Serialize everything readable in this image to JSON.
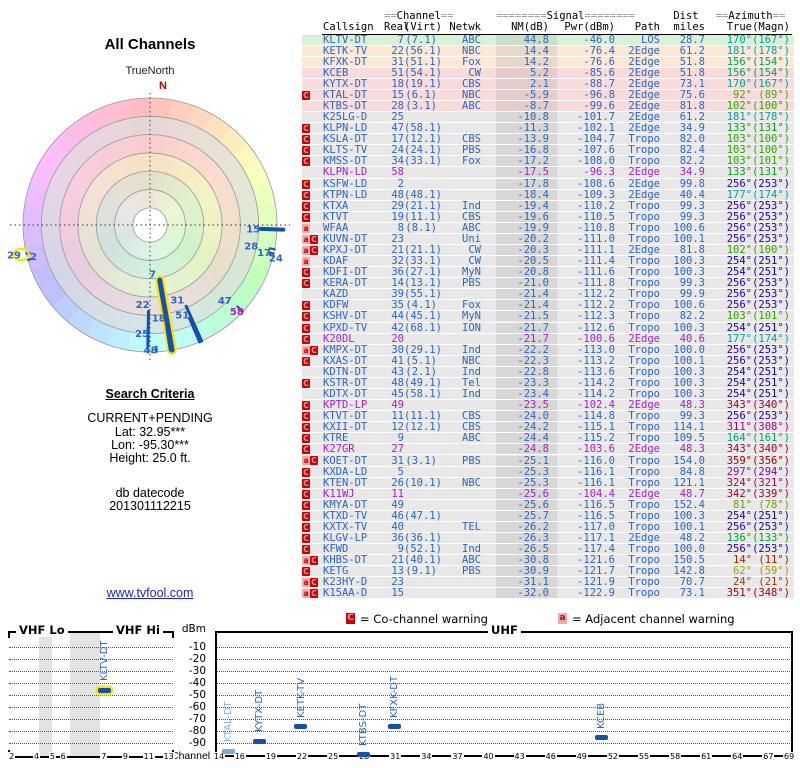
{
  "radar": {
    "title": "All Channels",
    "north_label": "TrueNorth",
    "north_letter": "N",
    "highlight_color": "#ffe400",
    "marker_color": "#1450b4",
    "markers": [
      {
        "ch": "15",
        "az": 92,
        "r0": 0.87,
        "r1": 1.05,
        "w": 4,
        "lr": 0.86
      },
      {
        "ch": "28",
        "az": 101,
        "r0": 0.96,
        "r1": 1.0,
        "w": 2,
        "lr": 0.86
      },
      {
        "ch": "17",
        "az": 103,
        "r0": 0.96,
        "r1": 1.0,
        "w": 2,
        "lr": 0.97
      },
      {
        "ch": "24",
        "az": 104,
        "r0": 0.97,
        "r1": 1.0,
        "w": 2,
        "lr": 1.07
      },
      {
        "ch": "47",
        "az": 133,
        "r0": 0.94,
        "r1": 1.0,
        "w": 2,
        "lr": 0.87
      },
      {
        "ch": "58",
        "az": 133,
        "r0": 0.97,
        "r1": 1.0,
        "w": 2,
        "lr": 1.0,
        "color": "#a81fd0"
      },
      {
        "ch": "31",
        "az": 156,
        "r0": 0.7,
        "r1": 1.0,
        "w": 3,
        "lr": 0.645
      },
      {
        "ch": "51",
        "az": 157,
        "r0": 0.8,
        "r1": 1.0,
        "w": 3,
        "lr": 0.77
      },
      {
        "ch": "7",
        "az": 170,
        "r0": 0.44,
        "r1": 1.0,
        "w": 5,
        "lr": 0.39,
        "highlight": true
      },
      {
        "ch": "18",
        "az": 171,
        "r0": 0.82,
        "r1": 1.0,
        "w": 2,
        "lr": 0.74
      },
      {
        "ch": "22",
        "az": 181,
        "r0": 0.68,
        "r1": 0.97,
        "w": 3,
        "lr": 0.625
      },
      {
        "ch": "25",
        "az": 181,
        "r0": 0.91,
        "r1": 1.0,
        "w": 2,
        "lr": 0.855
      },
      {
        "ch": "48",
        "az": 177,
        "r0": 0.96,
        "r1": 1.0,
        "w": 2,
        "lr": 0.985
      },
      {
        "ch": "2",
        "az": 254,
        "r0": 0.97,
        "r1": 1.0,
        "w": 2,
        "lr": 0.905
      },
      {
        "ch": "29",
        "az": 257,
        "r0": 0.97,
        "r1": 1.0,
        "w": 2,
        "lr": 1.05,
        "ring": true
      }
    ]
  },
  "criteria": {
    "title": "Search Criteria",
    "mode": "CURRENT+PENDING",
    "lat": "Lat: 32.95***",
    "lon": "Lon: -95.30***",
    "height": "Height: 25.0 ft.",
    "db_label": "db datecode",
    "db_datecode": "201301112215"
  },
  "site_link": "www.tvfool.com",
  "legend": {
    "c_symbol": "C",
    "c_text": "= Co-channel warning",
    "a_symbol": "a",
    "a_text": "= Adjacent channel warning"
  },
  "table": {
    "group_headers": {
      "channel_pre": "==",
      "channel": "Channel",
      "channel_post": "==",
      "signal_pre": "========",
      "signal": "Signal",
      "signal_post": "========",
      "dist": "Dist",
      "azimuth_pre": "==",
      "azimuth": "Azimuth",
      "azimuth_post": "=="
    },
    "columns": [
      "Callsign",
      "Real",
      "(Virt)",
      "Netwk",
      "NM(dB)",
      "Pwr(dBm)",
      "Path",
      "miles",
      "True",
      "(Magn)"
    ],
    "text_color": "#2e64c4",
    "pending_color": "#a81fd0",
    "rows": [
      [
        "",
        "KLTV-DT",
        "7",
        "(7.1)",
        "ABC",
        "44.8",
        "-46.0",
        "LOS",
        "28.7",
        170,
        167,
        "g",
        0
      ],
      [
        "",
        "KETK-TV",
        "22",
        "(56.1)",
        "NBC",
        "14.4",
        "-76.4",
        "2Edge",
        "61.2",
        181,
        178,
        "y",
        0
      ],
      [
        "",
        "KFXK-DT",
        "31",
        "(51.1)",
        "Fox",
        "14.2",
        "-76.6",
        "2Edge",
        "51.8",
        156,
        154,
        "y",
        0
      ],
      [
        "",
        "KCEB",
        "51",
        "(54.1)",
        "CW",
        "5.2",
        "-85.6",
        "2Edge",
        "51.8",
        156,
        154,
        "p",
        0
      ],
      [
        "",
        "KYTX-DT",
        "18",
        "(19.1)",
        "CBS",
        "2.1",
        "-88.7",
        "2Edge",
        "73.1",
        170,
        167,
        "p",
        0
      ],
      [
        "C",
        "KTAL-DT",
        "15",
        "(6.1)",
        "NBC",
        "-5.9",
        "-96.8",
        "2Edge",
        "75.6",
        92,
        89,
        "p",
        0
      ],
      [
        "",
        "KTBS-DT",
        "28",
        "(3.1)",
        "ABC",
        "-8.7",
        "-99.6",
        "2Edge",
        "81.8",
        102,
        100,
        "p",
        0
      ],
      [
        "",
        "K25LG-D",
        "25",
        "",
        "",
        "-10.8",
        "-101.7",
        "2Edge",
        "61.2",
        181,
        178,
        "e",
        0
      ],
      [
        "C",
        "KLPN-LD",
        "47",
        "(58.1)",
        "",
        "-11.3",
        "-102.1",
        "2Edge",
        "34.9",
        133,
        131,
        "e",
        0
      ],
      [
        "C",
        "KSLA-DT",
        "17",
        "(12.1)",
        "CBS",
        "-13.9",
        "-104.7",
        "Tropo",
        "82.0",
        103,
        100,
        "e",
        0
      ],
      [
        "C",
        "KLTS-TV",
        "24",
        "(24.1)",
        "PBS",
        "-16.8",
        "-107.6",
        "Tropo",
        "82.4",
        103,
        100,
        "e",
        0
      ],
      [
        "C",
        "KMSS-DT",
        "34",
        "(33.1)",
        "Fox",
        "-17.2",
        "-108.0",
        "Tropo",
        "82.2",
        103,
        101,
        "e",
        0
      ],
      [
        "",
        "KLPN-LD",
        "58",
        "",
        "",
        "-17.5",
        "-96.3",
        "2Edge",
        "34.9",
        133,
        131,
        "e",
        1
      ],
      [
        "C",
        "KSFW-LD",
        "2",
        "",
        "",
        "-17.8",
        "-108.6",
        "2Edge",
        "99.8",
        256,
        253,
        "e",
        0
      ],
      [
        "C",
        "KTPN-LD",
        "48",
        "(48.1)",
        "",
        "-18.4",
        "-109.3",
        "2Edge",
        "40.4",
        177,
        174,
        "e",
        0
      ],
      [
        "C",
        "KTXA",
        "29",
        "(21.1)",
        "Ind",
        "-19.4",
        "-110.2",
        "Tropo",
        "99.3",
        256,
        253,
        "e",
        0
      ],
      [
        "C",
        "KTVT",
        "19",
        "(11.1)",
        "CBS",
        "-19.6",
        "-110.5",
        "Tropo",
        "99.3",
        256,
        253,
        "e",
        0
      ],
      [
        "a",
        "WFAA",
        "8",
        "(8.1)",
        "ABC",
        "-19.9",
        "-110.8",
        "Tropo",
        "100.6",
        256,
        253,
        "e",
        0
      ],
      [
        "aC",
        "KUVN-DT",
        "23",
        "",
        "Uni",
        "-20.2",
        "-111.0",
        "Tropo",
        "100.1",
        256,
        253,
        "e",
        0
      ],
      [
        "aC",
        "KPXJ-DT",
        "21",
        "(21.1)",
        "CW",
        "-20.3",
        "-111.1",
        "2Edge",
        "81.8",
        102,
        100,
        "e",
        0
      ],
      [
        "a",
        "KDAF",
        "32",
        "(33.1)",
        "CW",
        "-20.5",
        "-111.4",
        "Tropo",
        "100.3",
        254,
        251,
        "e",
        0
      ],
      [
        "C",
        "KDFI-DT",
        "36",
        "(27.1)",
        "MyN",
        "-20.8",
        "-111.6",
        "Tropo",
        "100.3",
        254,
        251,
        "e",
        0
      ],
      [
        "C",
        "KERA-DT",
        "14",
        "(13.1)",
        "PBS",
        "-21.0",
        "-111.8",
        "Tropo",
        "99.3",
        256,
        253,
        "e",
        0
      ],
      [
        "",
        "KAZD",
        "39",
        "(55.1)",
        "",
        "-21.4",
        "-112.2",
        "Tropo",
        "99.9",
        256,
        253,
        "e",
        0
      ],
      [
        "C",
        "KDFW",
        "35",
        "(4.1)",
        "Fox",
        "-21.4",
        "-112.2",
        "Tropo",
        "100.6",
        256,
        253,
        "e",
        0
      ],
      [
        "C",
        "KSHV-DT",
        "44",
        "(45.1)",
        "MyN",
        "-21.5",
        "-112.3",
        "Tropo",
        "82.2",
        103,
        101,
        "e",
        0
      ],
      [
        "C",
        "KPXD-TV",
        "42",
        "(68.1)",
        "ION",
        "-21.7",
        "-112.6",
        "Tropo",
        "100.3",
        254,
        251,
        "e",
        0
      ],
      [
        "C",
        "K20DL",
        "20",
        "",
        "",
        "-21.7",
        "-100.6",
        "2Edge",
        "40.6",
        177,
        174,
        "e",
        1
      ],
      [
        "aC",
        "KMPX-DT",
        "30",
        "(29.1)",
        "Ind",
        "-22.2",
        "-113.0",
        "Tropo",
        "100.0",
        256,
        253,
        "e",
        0
      ],
      [
        "C",
        "KXAS-DT",
        "41",
        "(5.1)",
        "NBC",
        "-22.3",
        "-113.2",
        "Tropo",
        "100.1",
        256,
        253,
        "e",
        0
      ],
      [
        "",
        "KDTN-DT",
        "43",
        "(2.1)",
        "Ind",
        "-22.8",
        "-113.6",
        "Tropo",
        "100.3",
        254,
        251,
        "e",
        0
      ],
      [
        "C",
        "KSTR-DT",
        "48",
        "(49.1)",
        "Tel",
        "-23.3",
        "-114.2",
        "Tropo",
        "100.3",
        254,
        251,
        "e",
        0
      ],
      [
        "",
        "KDTX-DT",
        "45",
        "(58.1)",
        "Ind",
        "-23.4",
        "-114.2",
        "Tropo",
        "100.3",
        254,
        251,
        "e",
        0
      ],
      [
        "C",
        "KPTD-LP",
        "49",
        "",
        "",
        "-23.5",
        "-102.4",
        "2Edge",
        "48.3",
        343,
        340,
        "e",
        1
      ],
      [
        "C",
        "KTVT-DT",
        "11",
        "(11.1)",
        "CBS",
        "-24.0",
        "-114.8",
        "Tropo",
        "99.3",
        256,
        253,
        "e",
        0
      ],
      [
        "C",
        "KXII-DT",
        "12",
        "(12.1)",
        "CBS",
        "-24.2",
        "-115.1",
        "Tropo",
        "114.1",
        311,
        308,
        "e",
        0
      ],
      [
        "C",
        "KTRE",
        "9",
        "",
        "ABC",
        "-24.4",
        "-115.2",
        "Tropo",
        "109.5",
        164,
        161,
        "e",
        0
      ],
      [
        "C",
        "K27GR",
        "27",
        "",
        "",
        "-24.8",
        "-103.6",
        "2Edge",
        "48.3",
        343,
        340,
        "e",
        1
      ],
      [
        "aC",
        "KOET-DT",
        "31",
        "(3.1)",
        "PBS",
        "-25.1",
        "-116.0",
        "Tropo",
        "154.0",
        359,
        356,
        "e",
        0
      ],
      [
        "C",
        "KXDA-LD",
        "5",
        "",
        "",
        "-25.3",
        "-116.1",
        "Tropo",
        "84.8",
        297,
        294,
        "e",
        0
      ],
      [
        "C",
        "KTEN-DT",
        "26",
        "(10.1)",
        "NBC",
        "-25.3",
        "-116.1",
        "Tropo",
        "121.1",
        324,
        321,
        "e",
        0
      ],
      [
        "C",
        "K11WJ",
        "11",
        "",
        "",
        "-25.6",
        "-104.4",
        "2Edge",
        "48.7",
        342,
        339,
        "e",
        1
      ],
      [
        "C",
        "KMYA-DT",
        "49",
        "",
        "",
        "-25.6",
        "-116.5",
        "Tropo",
        "152.4",
        81,
        78,
        "e",
        0
      ],
      [
        "C",
        "KTXD-TV",
        "46",
        "(47.1)",
        "",
        "-25.7",
        "-116.5",
        "Tropo",
        "100.3",
        254,
        251,
        "e",
        0
      ],
      [
        "C",
        "KXTX-TV",
        "40",
        "",
        "TEL",
        "-26.2",
        "-117.0",
        "Tropo",
        "100.1",
        256,
        253,
        "e",
        0
      ],
      [
        "C",
        "KLGV-LP",
        "36",
        "(36.1)",
        "",
        "-26.3",
        "-117.1",
        "2Edge",
        "48.2",
        136,
        133,
        "e",
        0
      ],
      [
        "C",
        "KFWD",
        "9",
        "(52.1)",
        "Ind",
        "-26.5",
        "-117.4",
        "Tropo",
        "100.0",
        256,
        253,
        "e",
        0
      ],
      [
        "aC",
        "KHBS-DT",
        "21",
        "(40.1)",
        "ABC",
        "-30.8",
        "-121.6",
        "Tropo",
        "150.5",
        14,
        11,
        "e",
        0
      ],
      [
        "C",
        "KETG",
        "13",
        "(9.1)",
        "PBS",
        "-30.9",
        "-121.7",
        "Tropo",
        "142.8",
        62,
        59,
        "e",
        0
      ],
      [
        "aC",
        "K23HY-D",
        "23",
        "",
        "",
        "-31.1",
        "-121.9",
        "Tropo",
        "70.7",
        24,
        21,
        "e",
        0
      ],
      [
        "aC",
        "K15AA-D",
        "15",
        "",
        "",
        "-32.0",
        "-122.9",
        "Tropo",
        "73.1",
        351,
        348,
        "e",
        0
      ]
    ]
  },
  "chart_data": [
    {
      "type": "scatter",
      "subtype": "polar-radar",
      "title": "All Channels",
      "north_label": "TrueNorth",
      "channels_plotted": [
        15,
        28,
        17,
        24,
        47,
        58,
        31,
        51,
        7,
        18,
        22,
        25,
        48,
        2,
        29
      ],
      "highlighted_channel": 7
    },
    {
      "type": "scatter",
      "band": "VHF",
      "label_lo": "VHF Lo",
      "label_hi": "VHF Hi",
      "ylabel": "dBm",
      "xlabel": "Channel",
      "ylim": [
        -97,
        -5
      ],
      "y_ticks": [
        -10,
        -20,
        -30,
        -40,
        -50,
        -60,
        -70,
        -80,
        -90
      ],
      "x_ticks": [
        [
          2,
          0.025
        ],
        [
          4,
          0.175
        ],
        [
          5,
          0.27
        ],
        [
          6,
          0.335
        ],
        [
          7,
          0.58
        ],
        [
          9,
          0.71
        ],
        [
          11,
          0.835
        ],
        [
          13,
          0.955
        ]
      ],
      "gray_bands": [
        [
          0.185,
          0.268
        ],
        [
          0.372,
          0.553
        ]
      ],
      "points": [
        {
          "callsign": "KLTV-DT",
          "channel": 7,
          "frac": 0.58,
          "dbm": -46.0,
          "highlight": true
        }
      ]
    },
    {
      "type": "scatter",
      "band": "UHF",
      "label": "UHF",
      "ylabel": "dBm",
      "xlabel": "Channel",
      "ylim": [
        -97,
        -5
      ],
      "x_ticks": [
        14,
        16,
        19,
        22,
        25,
        28,
        31,
        34,
        37,
        40,
        43,
        46,
        49,
        52,
        55,
        58,
        61,
        64,
        67,
        69
      ],
      "points": [
        {
          "callsign": "KTAL-DT",
          "channel": 15,
          "dbm": -96.8,
          "faded": true
        },
        {
          "callsign": "KYTX-DT",
          "channel": 18,
          "dbm": -88.7
        },
        {
          "callsign": "KETK-TV",
          "channel": 22,
          "dbm": -76.4
        },
        {
          "callsign": "KTBS-DT",
          "channel": 28,
          "dbm": -99.6
        },
        {
          "callsign": "KFXK-DT",
          "channel": 31,
          "dbm": -76.6
        },
        {
          "callsign": "KCEB",
          "channel": 51,
          "dbm": -85.6
        }
      ]
    }
  ]
}
